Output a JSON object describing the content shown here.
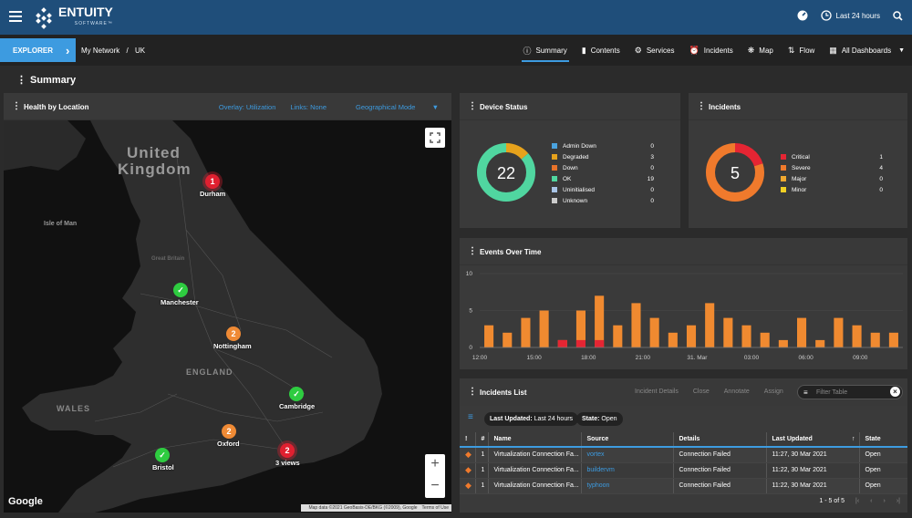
{
  "app": {
    "brand": "ENTUITY",
    "brand_sub": "SOFTWARE™",
    "time_range": "Last 24 hours"
  },
  "nav": {
    "explorer": "EXPLORER",
    "crumbs": [
      "My Network",
      "/",
      "UK"
    ],
    "tabs": [
      {
        "label": "Summary",
        "icon": "info-icon"
      },
      {
        "label": "Contents",
        "icon": "folder-icon"
      },
      {
        "label": "Services",
        "icon": "gears-icon"
      },
      {
        "label": "Incidents",
        "icon": "alarm-icon"
      },
      {
        "label": "Map",
        "icon": "network-icon"
      },
      {
        "label": "Flow",
        "icon": "flow-icon"
      },
      {
        "label": "All Dashboards",
        "icon": "grid-icon"
      }
    ]
  },
  "page_title": "Summary",
  "map": {
    "title": "Health by Location",
    "controls": [
      "Overlay: Utilization",
      "Links: None",
      "Geographical Mode"
    ],
    "region_labels": [
      "United",
      "Kingdom",
      "Isle of Man",
      "ENGLAND",
      "WALES",
      "Great Britain"
    ],
    "markers": [
      {
        "label": "Durham",
        "badge": "1",
        "status": "critical"
      },
      {
        "label": "Manchester",
        "badge": "",
        "status": "ok"
      },
      {
        "label": "Nottingham",
        "badge": "2",
        "status": "warning"
      },
      {
        "label": "Cambridge",
        "badge": "",
        "status": "ok"
      },
      {
        "label": "Oxford",
        "badge": "2",
        "status": "warning"
      },
      {
        "label": "Bristol",
        "badge": "",
        "status": "ok"
      },
      {
        "label": "3 views",
        "badge": "2",
        "status": "critical"
      }
    ],
    "google": "Google",
    "attribution": [
      "Map data ©2021 GeoBasis-DE/BKG (©2009), Google",
      "Terms of Use"
    ]
  },
  "device_status": {
    "title": "Device Status",
    "total": "22",
    "items": [
      {
        "label": "Admin Down",
        "value": 0,
        "color": "#4aa3df"
      },
      {
        "label": "Degraded",
        "value": 3,
        "color": "#e6a21c"
      },
      {
        "label": "Down",
        "value": 0,
        "color": "#e8732a"
      },
      {
        "label": "OK",
        "value": 19,
        "color": "#50d6a0"
      },
      {
        "label": "Uninitialised",
        "value": 0,
        "color": "#a9c4e6"
      },
      {
        "label": "Unknown",
        "value": 0,
        "color": "#cccccc"
      }
    ]
  },
  "incidents": {
    "title": "Incidents",
    "total": "5",
    "items": [
      {
        "label": "Critical",
        "value": 1,
        "color": "#e52533"
      },
      {
        "label": "Severe",
        "value": 4,
        "color": "#f07a2c"
      },
      {
        "label": "Major",
        "value": 0,
        "color": "#f0a830"
      },
      {
        "label": "Minor",
        "value": 0,
        "color": "#f2d024"
      }
    ]
  },
  "events": {
    "title": "Events Over Time"
  },
  "chart_data": {
    "type": "bar",
    "title": "Events Over Time",
    "ylim": [
      0,
      10
    ],
    "y_ticks": [
      "0",
      "5",
      "10"
    ],
    "x_ticks": [
      "12:00",
      "15:00",
      "18:00",
      "21:00",
      "31. Mar",
      "03:00",
      "06:00",
      "09:00"
    ],
    "series": [
      {
        "color": "#f08a30",
        "values": [
          3,
          2,
          4,
          5,
          1,
          5,
          7,
          3,
          6,
          4,
          2,
          3,
          6,
          4,
          3,
          2,
          1,
          4,
          1,
          4,
          3,
          2,
          2
        ]
      },
      {
        "color": "#e52533",
        "values": [
          0,
          0,
          0,
          0,
          1,
          1,
          1,
          0,
          0,
          0,
          0,
          0,
          0,
          0,
          0,
          0,
          0,
          0,
          0,
          0,
          0,
          0,
          0
        ]
      }
    ]
  },
  "incidents_list": {
    "title": "Incidents List",
    "actions": [
      "Incident Details",
      "Close",
      "Annotate",
      "Assign"
    ],
    "filter_placeholder": "Filter Table",
    "chips": [
      {
        "key": "Last Updated:",
        "value": "Last 24 hours"
      },
      {
        "key": "State:",
        "value": "Open"
      }
    ],
    "columns": [
      "!",
      "#",
      "Name",
      "Source",
      "Details",
      "Last Updated",
      "State"
    ],
    "rows": [
      {
        "count": "1",
        "name": "Virtualization Connection Fa...",
        "source": "vortex",
        "details": "Connection Failed",
        "updated": "11:27, 30 Mar 2021",
        "state": "Open"
      },
      {
        "count": "1",
        "name": "Virtualization Connection Fa...",
        "source": "buildervm",
        "details": "Connection Failed",
        "updated": "11:22, 30 Mar 2021",
        "state": "Open"
      },
      {
        "count": "1",
        "name": "Virtualization Connection Fa...",
        "source": "typhoon",
        "details": "Connection Failed",
        "updated": "11:22, 30 Mar 2021",
        "state": "Open"
      }
    ],
    "pager": "1 - 5 of 5"
  }
}
